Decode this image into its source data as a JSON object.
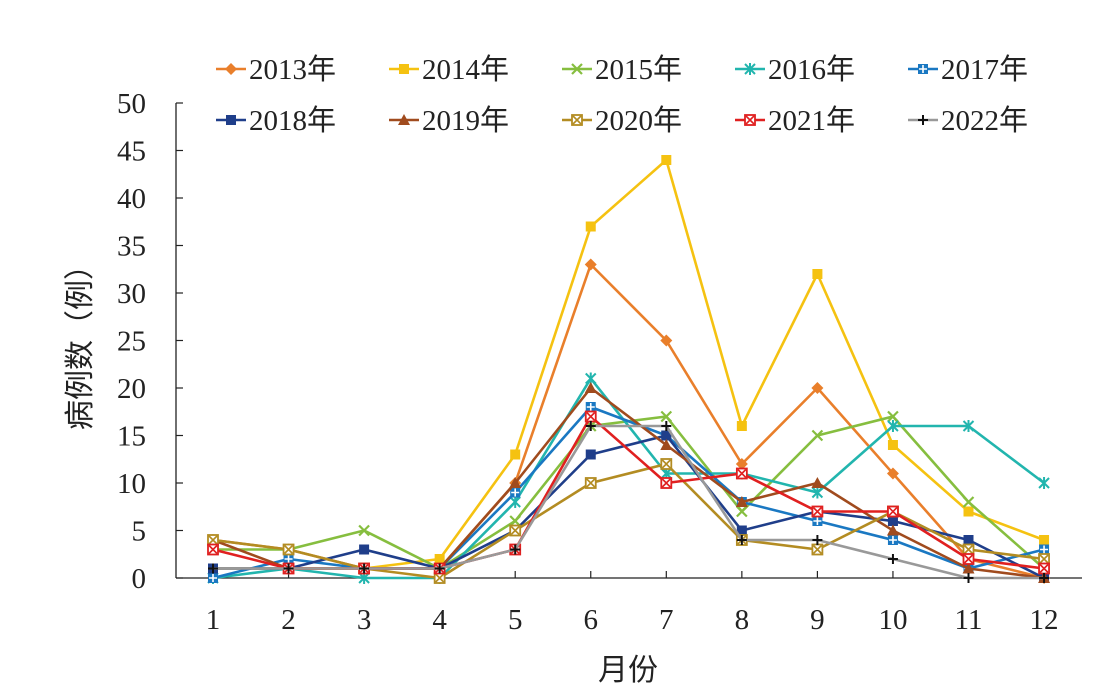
{
  "chart_data": {
    "type": "line",
    "title": "",
    "xlabel": "月份",
    "ylabel": "病例数（例）",
    "x": [
      1,
      2,
      3,
      4,
      5,
      6,
      7,
      8,
      9,
      10,
      11,
      12
    ],
    "ylim": [
      0,
      50
    ],
    "yticks": [
      0,
      5,
      10,
      15,
      20,
      25,
      30,
      35,
      40,
      45,
      50
    ],
    "grid": false,
    "legend": "top",
    "series": [
      {
        "name": "2013年",
        "color": "#E97F2B",
        "marker": "diamond",
        "values": [
          4,
          3,
          1,
          1,
          10,
          33,
          25,
          12,
          20,
          11,
          2,
          0
        ]
      },
      {
        "name": "2014年",
        "color": "#F5C211",
        "marker": "square",
        "values": [
          1,
          1,
          1,
          2,
          13,
          37,
          44,
          16,
          32,
          14,
          7,
          4
        ]
      },
      {
        "name": "2015年",
        "color": "#86BE3F",
        "marker": "x",
        "values": [
          3,
          3,
          5,
          1,
          6,
          16,
          17,
          7,
          15,
          17,
          8,
          1
        ]
      },
      {
        "name": "2016年",
        "color": "#22B5AE",
        "marker": "asterisk",
        "values": [
          0,
          1,
          0,
          0,
          8,
          21,
          11,
          11,
          9,
          16,
          16,
          10
        ]
      },
      {
        "name": "2017年",
        "color": "#1A78C2",
        "marker": "square-cross",
        "values": [
          0,
          2,
          1,
          1,
          9,
          18,
          15,
          8,
          6,
          4,
          1,
          3
        ]
      },
      {
        "name": "2018年",
        "color": "#1F3E8A",
        "marker": "square",
        "values": [
          1,
          1,
          3,
          1,
          5,
          13,
          15,
          5,
          7,
          6,
          4,
          0
        ]
      },
      {
        "name": "2019年",
        "color": "#A04B1E",
        "marker": "triangle",
        "values": [
          4,
          1,
          1,
          1,
          10,
          20,
          14,
          8,
          10,
          5,
          1,
          0
        ]
      },
      {
        "name": "2020年",
        "color": "#B38C22",
        "marker": "square-x",
        "values": [
          4,
          3,
          1,
          0,
          5,
          10,
          12,
          4,
          3,
          7,
          3,
          2
        ]
      },
      {
        "name": "2021年",
        "color": "#E02020",
        "marker": "square-x",
        "values": [
          3,
          1,
          1,
          1,
          3,
          17,
          10,
          11,
          7,
          7,
          2,
          1
        ]
      },
      {
        "name": "2022年",
        "color": "#999999",
        "marker": "plus",
        "values": [
          1,
          1,
          1,
          1,
          3,
          16,
          16,
          4,
          4,
          2,
          0,
          0
        ]
      }
    ]
  }
}
